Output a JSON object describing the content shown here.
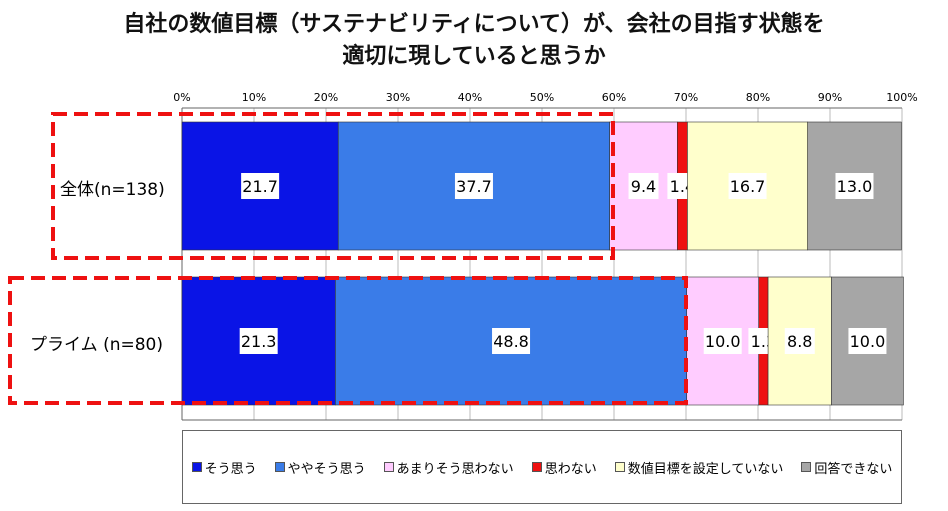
{
  "chart_data": {
    "type": "bar",
    "orientation": "horizontal",
    "stacked": true,
    "title": [
      "自社の数値目標（サステナビリティについて）が、会社の目指す状態を",
      "適切に現していると思うか"
    ],
    "categories": [
      "全体(n=138)",
      "プライム (n=80)"
    ],
    "series": [
      {
        "name": "そう思う",
        "color": "#0a14e6",
        "values": [
          21.7,
          21.3
        ]
      },
      {
        "name": "ややそう思う",
        "color": "#3a7ce8",
        "values": [
          37.7,
          48.8
        ]
      },
      {
        "name": "あまりそう思わない",
        "color": "#ffccff",
        "values": [
          9.4,
          10.0
        ]
      },
      {
        "name": "思わない",
        "color": "#ee1111",
        "values": [
          1.4,
          1.3
        ]
      },
      {
        "name": "数値目標を設定していない",
        "color": "#ffffcc",
        "values": [
          16.7,
          8.8
        ]
      },
      {
        "name": "回答できない",
        "color": "#a6a6a6",
        "values": [
          13.0,
          10.0
        ]
      }
    ],
    "xlim": [
      0,
      100
    ],
    "xticks": [
      "0%",
      "10%",
      "20%",
      "30%",
      "40%",
      "50%",
      "60%",
      "70%",
      "80%",
      "90%",
      "100%"
    ],
    "grid": true,
    "legend": "bottom",
    "highlight_color": "#ee1111"
  }
}
